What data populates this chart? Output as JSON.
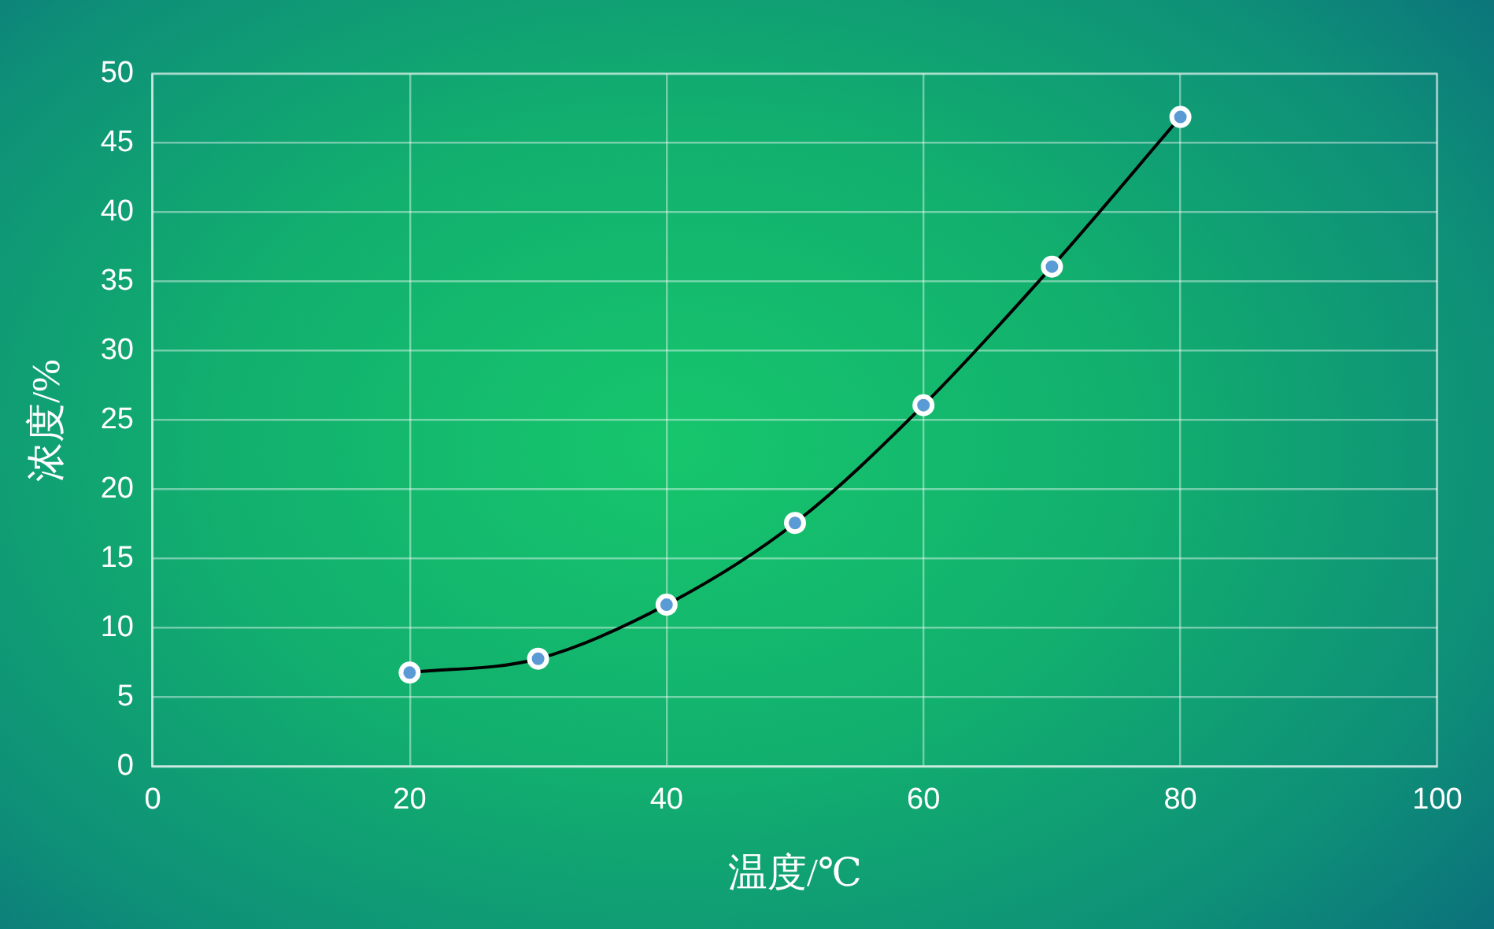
{
  "chart_data": {
    "type": "line",
    "xlabel": "温度/℃",
    "ylabel": "浓度/%",
    "x": [
      20,
      30,
      40,
      50,
      60,
      70,
      80
    ],
    "series": [
      {
        "color": "#000000",
        "colors": [
          "#5b9bd5",
          "#5b9bd5",
          "#5b9bd5",
          "#5b9bd5",
          "#5b9bd5",
          "#5b9bd5",
          "#5b9bd5"
        ],
        "values": [
          6.8,
          7.8,
          11.7,
          17.6,
          26.1,
          36.1,
          46.9
        ]
      }
    ],
    "xlim": [
      0,
      100
    ],
    "xticks": [
      0,
      20,
      40,
      60,
      80,
      100
    ],
    "ylim": [
      0,
      50
    ],
    "yticks": [
      0,
      5,
      10,
      15,
      20,
      25,
      30,
      35,
      40,
      45,
      50
    ],
    "grid": true,
    "marker": "circle",
    "line_style": "solid"
  }
}
